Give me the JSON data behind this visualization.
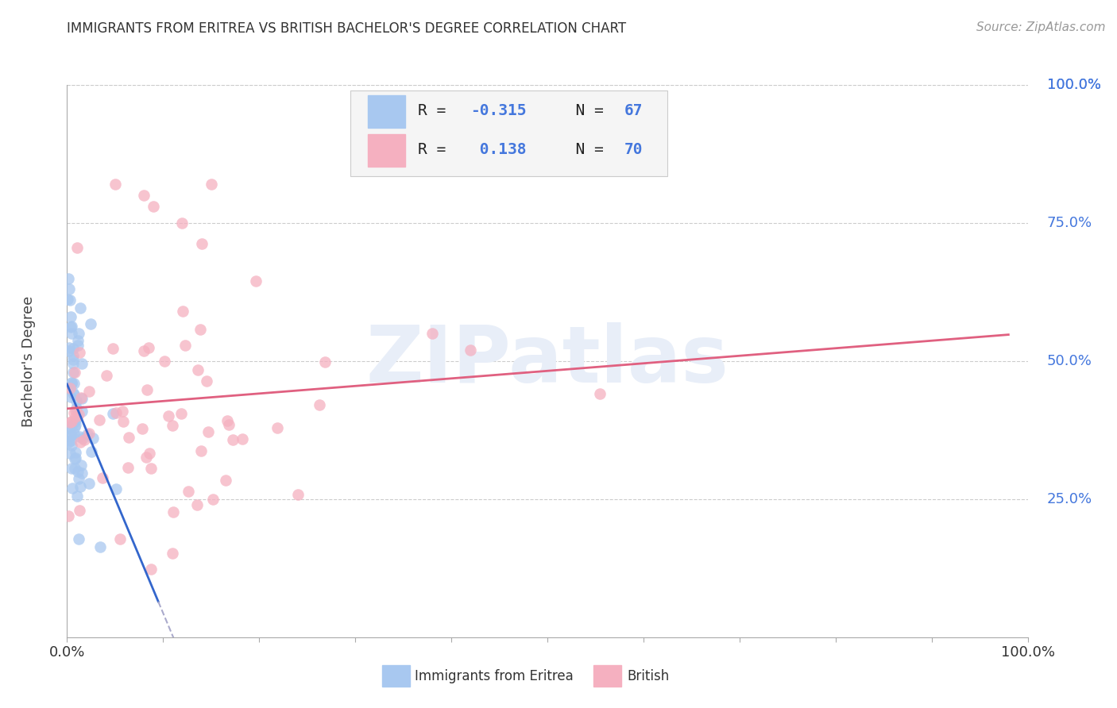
{
  "title": "IMMIGRANTS FROM ERITREA VS BRITISH BACHELOR'S DEGREE CORRELATION CHART",
  "source": "Source: ZipAtlas.com",
  "ylabel": "Bachelor's Degree",
  "ytick_labels": [
    "100.0%",
    "75.0%",
    "50.0%",
    "25.0%"
  ],
  "ytick_values": [
    1.0,
    0.75,
    0.5,
    0.25
  ],
  "legend_eritrea_R": "-0.315",
  "legend_eritrea_N": "67",
  "legend_british_R": "0.138",
  "legend_british_N": "70",
  "color_eritrea": "#a8c8f0",
  "color_british": "#f5b0c0",
  "color_trendline_eritrea": "#3366cc",
  "color_trendline_british": "#e06080",
  "color_trendline_eritrea_ext": "#aaaacc",
  "color_title": "#333333",
  "color_yticks": "#4477dd",
  "color_xticks": "#333333",
  "color_source": "#999999",
  "color_legend_text_dark": "#222222",
  "color_legend_text_blue": "#4477dd",
  "watermark_color": "#e8eef8",
  "watermark_text": "ZIPatlas",
  "legend_box_color": "#f5f5f5",
  "legend_box_edge": "#cccccc",
  "grid_color": "#cccccc",
  "spine_color": "#aaaaaa"
}
